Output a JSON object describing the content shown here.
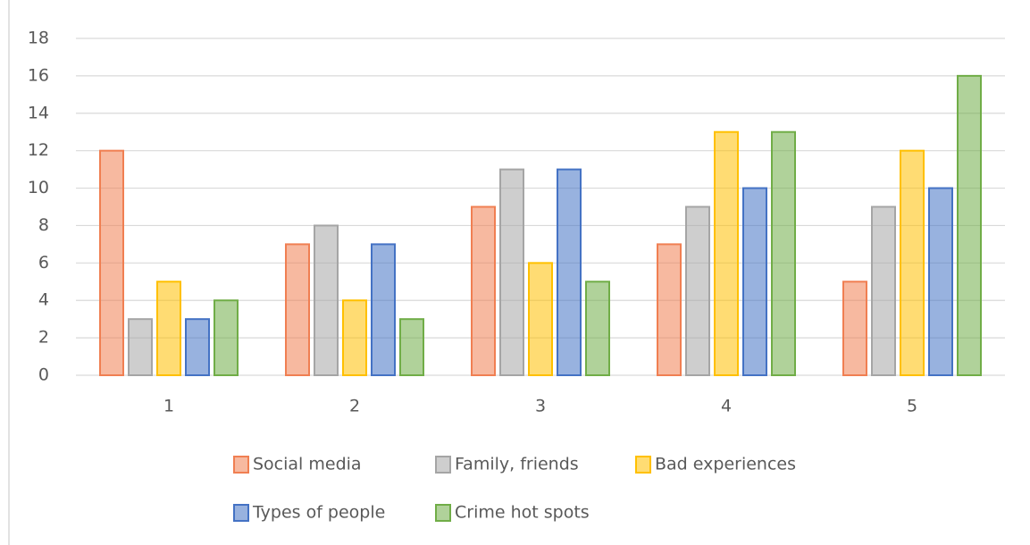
{
  "chart_data": {
    "type": "bar",
    "categories": [
      "1",
      "2",
      "3",
      "4",
      "5"
    ],
    "series": [
      {
        "name": "Social media",
        "color": "#f07f52",
        "values": [
          12,
          7,
          9,
          7,
          5
        ]
      },
      {
        "name": "Family, friends",
        "color": "#a5a5a5",
        "values": [
          3,
          8,
          11,
          9,
          9
        ]
      },
      {
        "name": "Bad experiences",
        "color": "#ffc000",
        "values": [
          5,
          4,
          6,
          13,
          12
        ]
      },
      {
        "name": "Types of people",
        "color": "#4472c4",
        "values": [
          3,
          7,
          11,
          10,
          10
        ]
      },
      {
        "name": "Crime hot spots",
        "color": "#70ad47",
        "values": [
          4,
          3,
          5,
          13,
          16
        ]
      }
    ],
    "ylim": [
      0,
      18
    ],
    "yticks": [
      0,
      2,
      4,
      6,
      8,
      10,
      12,
      14,
      16,
      18
    ],
    "grid": true,
    "legend": "bottom"
  }
}
